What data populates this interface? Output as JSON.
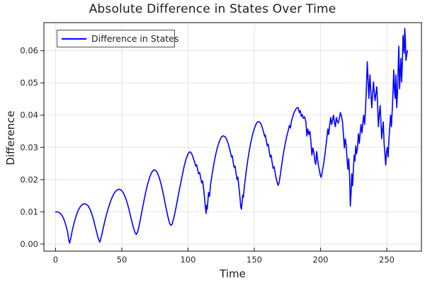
{
  "title": "Absolute Difference in States Over Time",
  "axes": {
    "x_label": "Time",
    "y_label": "Difference"
  },
  "legend": {
    "label": "Difference in States"
  },
  "colors": {
    "line": "#0000ff",
    "grid": "rgba(0,0,0,0.10)",
    "frame": "#363636",
    "tick_text": "#262626"
  },
  "chart_data": {
    "type": "line",
    "title": "Absolute Difference in States Over Time",
    "xlabel": "Time",
    "ylabel": "Difference",
    "xlim": [
      -8.8,
      276.2
    ],
    "ylim": [
      -0.0022,
      0.0687
    ],
    "grid": true,
    "legend_position": "top-left",
    "xticks": [
      0,
      50,
      100,
      150,
      200,
      250
    ],
    "xtick_labels": [
      "0",
      "50",
      "100",
      "150",
      "200",
      "250"
    ],
    "yticks": [
      0.0,
      0.01,
      0.02,
      0.03,
      0.04,
      0.05,
      0.06
    ],
    "ytick_labels": [
      "0.00",
      "0.01",
      "0.02",
      "0.03",
      "0.04",
      "0.05",
      "0.06"
    ],
    "series": [
      {
        "name": "Difference in States",
        "color": "#0000ff",
        "points": [
          [
            0,
            0.01
          ],
          [
            1.5,
            0.01
          ],
          [
            3,
            0.0097
          ],
          [
            4.5,
            0.0091
          ],
          [
            6,
            0.008
          ],
          [
            7.5,
            0.0062
          ],
          [
            9,
            0.004
          ],
          [
            10,
            0.0012
          ],
          [
            10.6,
            0.0003
          ],
          [
            11.5,
            0.0018
          ],
          [
            12.5,
            0.004
          ],
          [
            14,
            0.0066
          ],
          [
            15.5,
            0.0087
          ],
          [
            17,
            0.0104
          ],
          [
            18.5,
            0.0115
          ],
          [
            20,
            0.0122
          ],
          [
            21.5,
            0.0125
          ],
          [
            23,
            0.0124
          ],
          [
            24.5,
            0.0119
          ],
          [
            26,
            0.0108
          ],
          [
            27.5,
            0.0092
          ],
          [
            29,
            0.007
          ],
          [
            30.5,
            0.0045
          ],
          [
            32,
            0.002
          ],
          [
            33.4,
            0.0006
          ],
          [
            34.5,
            0.0022
          ],
          [
            36,
            0.005
          ],
          [
            37.5,
            0.0077
          ],
          [
            39,
            0.01
          ],
          [
            40.5,
            0.012
          ],
          [
            42,
            0.0138
          ],
          [
            43.5,
            0.0152
          ],
          [
            45,
            0.0162
          ],
          [
            46.5,
            0.0168
          ],
          [
            48,
            0.017
          ],
          [
            49.5,
            0.0168
          ],
          [
            51,
            0.016
          ],
          [
            52.5,
            0.0147
          ],
          [
            54,
            0.0129
          ],
          [
            55.5,
            0.0106
          ],
          [
            57,
            0.008
          ],
          [
            58.5,
            0.0055
          ],
          [
            60,
            0.0035
          ],
          [
            61,
            0.003
          ],
          [
            62,
            0.0038
          ],
          [
            63.5,
            0.0065
          ],
          [
            65,
            0.0098
          ],
          [
            66.5,
            0.013
          ],
          [
            68,
            0.016
          ],
          [
            69.5,
            0.0186
          ],
          [
            71,
            0.0207
          ],
          [
            72.5,
            0.0222
          ],
          [
            74,
            0.023
          ],
          [
            75.5,
            0.0229
          ],
          [
            77,
            0.022
          ],
          [
            78.5,
            0.0203
          ],
          [
            80,
            0.018
          ],
          [
            81.5,
            0.0152
          ],
          [
            83,
            0.012
          ],
          [
            84.5,
            0.009
          ],
          [
            86,
            0.0065
          ],
          [
            87,
            0.0058
          ],
          [
            88,
            0.0062
          ],
          [
            89.5,
            0.0085
          ],
          [
            91,
            0.0115
          ],
          [
            92.5,
            0.0148
          ],
          [
            94,
            0.018
          ],
          [
            95.5,
            0.021
          ],
          [
            97,
            0.024
          ],
          [
            98.5,
            0.0264
          ],
          [
            100,
            0.028
          ],
          [
            101,
            0.0286
          ],
          [
            102,
            0.0285
          ],
          [
            103,
            0.0278
          ],
          [
            104,
            0.0266
          ],
          [
            105,
            0.0254
          ],
          [
            105.8,
            0.0242
          ],
          [
            106.5,
            0.0246
          ],
          [
            107.3,
            0.023
          ],
          [
            108,
            0.0218
          ],
          [
            108.8,
            0.0222
          ],
          [
            109.5,
            0.0206
          ],
          [
            110.3,
            0.019
          ],
          [
            111,
            0.0196
          ],
          [
            111.8,
            0.017
          ],
          [
            112.3,
            0.015
          ],
          [
            112.8,
            0.0128
          ],
          [
            113.2,
            0.011
          ],
          [
            113.6,
            0.0095
          ],
          [
            114,
            0.012
          ],
          [
            114.5,
            0.0108
          ],
          [
            115,
            0.0135
          ],
          [
            115.5,
            0.016
          ],
          [
            116.2,
            0.0148
          ],
          [
            117,
            0.0185
          ],
          [
            118,
            0.0212
          ],
          [
            119,
            0.0238
          ],
          [
            120,
            0.026
          ],
          [
            121,
            0.028
          ],
          [
            122,
            0.0297
          ],
          [
            123,
            0.0311
          ],
          [
            124,
            0.0322
          ],
          [
            125,
            0.0331
          ],
          [
            126.5,
            0.0336
          ],
          [
            128,
            0.0333
          ],
          [
            129,
            0.0326
          ],
          [
            130,
            0.0315
          ],
          [
            131,
            0.0301
          ],
          [
            132,
            0.0285
          ],
          [
            132.8,
            0.027
          ],
          [
            133.4,
            0.0274
          ],
          [
            134,
            0.0256
          ],
          [
            134.8,
            0.0238
          ],
          [
            135.5,
            0.0242
          ],
          [
            136.2,
            0.022
          ],
          [
            137,
            0.02
          ],
          [
            137.6,
            0.0208
          ],
          [
            138.2,
            0.0185
          ],
          [
            138.8,
            0.0162
          ],
          [
            139.3,
            0.014
          ],
          [
            139.8,
            0.0115
          ],
          [
            140.3,
            0.0108
          ],
          [
            140.8,
            0.013
          ],
          [
            141.3,
            0.0152
          ],
          [
            141.8,
            0.0145
          ],
          [
            142.3,
            0.017
          ],
          [
            143,
            0.0195
          ],
          [
            144,
            0.0228
          ],
          [
            145,
            0.0258
          ],
          [
            146,
            0.0284
          ],
          [
            147,
            0.0307
          ],
          [
            148,
            0.0327
          ],
          [
            149,
            0.0344
          ],
          [
            150,
            0.0358
          ],
          [
            151,
            0.0369
          ],
          [
            152,
            0.0377
          ],
          [
            153,
            0.038
          ],
          [
            154,
            0.0379
          ],
          [
            155,
            0.0373
          ],
          [
            156,
            0.0362
          ],
          [
            157,
            0.0348
          ],
          [
            157.8,
            0.0334
          ],
          [
            158.4,
            0.0338
          ],
          [
            159,
            0.0322
          ],
          [
            159.8,
            0.0305
          ],
          [
            160.5,
            0.031
          ],
          [
            161.2,
            0.029
          ],
          [
            162,
            0.027
          ],
          [
            162.7,
            0.0276
          ],
          [
            163.4,
            0.0255
          ],
          [
            164.2,
            0.0235
          ],
          [
            165,
            0.024
          ],
          [
            165.8,
            0.022
          ],
          [
            166.5,
            0.0205
          ],
          [
            167.2,
            0.0192
          ],
          [
            168,
            0.0182
          ],
          [
            168.7,
            0.019
          ],
          [
            169.5,
            0.021
          ],
          [
            170.5,
            0.024
          ],
          [
            171.5,
            0.0268
          ],
          [
            172.5,
            0.0293
          ],
          [
            173.5,
            0.0315
          ],
          [
            174.5,
            0.0334
          ],
          [
            175.5,
            0.035
          ],
          [
            176.5,
            0.0368
          ],
          [
            177.2,
            0.036
          ],
          [
            178,
            0.038
          ],
          [
            179,
            0.0395
          ],
          [
            180,
            0.0408
          ],
          [
            181,
            0.0416
          ],
          [
            182,
            0.0422
          ],
          [
            183,
            0.0424
          ],
          [
            184,
            0.0408
          ],
          [
            184.7,
            0.0414
          ],
          [
            185.5,
            0.0396
          ],
          [
            186.2,
            0.0402
          ],
          [
            187,
            0.039
          ],
          [
            188,
            0.0395
          ],
          [
            189,
            0.0378
          ],
          [
            189.7,
            0.0335
          ],
          [
            190.4,
            0.0357
          ],
          [
            191.2,
            0.034
          ],
          [
            192,
            0.035
          ],
          [
            192.7,
            0.032
          ],
          [
            193.5,
            0.0276
          ],
          [
            194.2,
            0.0298
          ],
          [
            195,
            0.0285
          ],
          [
            195.7,
            0.0258
          ],
          [
            196.4,
            0.0247
          ],
          [
            197.1,
            0.0287
          ],
          [
            197.8,
            0.0262
          ],
          [
            198.5,
            0.0242
          ],
          [
            199.2,
            0.0228
          ],
          [
            199.8,
            0.0214
          ],
          [
            200.5,
            0.0207
          ],
          [
            201.2,
            0.0222
          ],
          [
            202,
            0.024
          ],
          [
            202.7,
            0.0258
          ],
          [
            203.4,
            0.028
          ],
          [
            204.1,
            0.0305
          ],
          [
            204.8,
            0.033
          ],
          [
            205.5,
            0.0357
          ],
          [
            206.2,
            0.034
          ],
          [
            207,
            0.0372
          ],
          [
            207.7,
            0.0393
          ],
          [
            208.4,
            0.0371
          ],
          [
            209.1,
            0.0385
          ],
          [
            209.8,
            0.04
          ],
          [
            210.5,
            0.0378
          ],
          [
            211.2,
            0.0364
          ],
          [
            212,
            0.0393
          ],
          [
            212.7,
            0.038
          ],
          [
            213.4,
            0.0375
          ],
          [
            214.2,
            0.039
          ],
          [
            215,
            0.0408
          ],
          [
            215.8,
            0.0398
          ],
          [
            216.6,
            0.0379
          ],
          [
            217.3,
            0.034
          ],
          [
            218,
            0.0298
          ],
          [
            218.7,
            0.0327
          ],
          [
            219.4,
            0.0305
          ],
          [
            220.1,
            0.026
          ],
          [
            220.7,
            0.0232
          ],
          [
            221.3,
            0.0265
          ],
          [
            222,
            0.0205
          ],
          [
            222.5,
            0.0118
          ],
          [
            223.1,
            0.016
          ],
          [
            223.6,
            0.0218
          ],
          [
            224.2,
            0.0181
          ],
          [
            224.8,
            0.023
          ],
          [
            225.4,
            0.0276
          ],
          [
            226,
            0.0258
          ],
          [
            226.6,
            0.0305
          ],
          [
            227.2,
            0.028
          ],
          [
            227.9,
            0.0298
          ],
          [
            228.6,
            0.0342
          ],
          [
            229.3,
            0.0312
          ],
          [
            230,
            0.0348
          ],
          [
            230.6,
            0.0371
          ],
          [
            231.3,
            0.0345
          ],
          [
            232,
            0.0378
          ],
          [
            232.6,
            0.04
          ],
          [
            233.3,
            0.0371
          ],
          [
            234,
            0.042
          ],
          [
            234.6,
            0.048
          ],
          [
            235.3,
            0.0566
          ],
          [
            236,
            0.05
          ],
          [
            236.5,
            0.0452
          ],
          [
            237.3,
            0.0525
          ],
          [
            238,
            0.047
          ],
          [
            238.7,
            0.0423
          ],
          [
            239.4,
            0.047
          ],
          [
            240,
            0.0503
          ],
          [
            240.6,
            0.0468
          ],
          [
            241.2,
            0.0445
          ],
          [
            241.9,
            0.047
          ],
          [
            242.5,
            0.0488
          ],
          [
            243.1,
            0.043
          ],
          [
            243.7,
            0.0364
          ],
          [
            244.3,
            0.04
          ],
          [
            245,
            0.043
          ],
          [
            245.6,
            0.038
          ],
          [
            246.2,
            0.0327
          ],
          [
            246.8,
            0.0355
          ],
          [
            247.4,
            0.0379
          ],
          [
            248,
            0.0312
          ],
          [
            248.6,
            0.028
          ],
          [
            249.2,
            0.0245
          ],
          [
            249.8,
            0.0285
          ],
          [
            250.4,
            0.03
          ],
          [
            251,
            0.027
          ],
          [
            251.6,
            0.032
          ],
          [
            252.3,
            0.0365
          ],
          [
            252.9,
            0.04
          ],
          [
            253.5,
            0.0364
          ],
          [
            254.2,
            0.042
          ],
          [
            254.8,
            0.048
          ],
          [
            255.3,
            0.054
          ],
          [
            255.9,
            0.0475
          ],
          [
            256.4,
            0.0452
          ],
          [
            256.9,
            0.0525
          ],
          [
            257.5,
            0.0423
          ],
          [
            258.1,
            0.047
          ],
          [
            258.6,
            0.054
          ],
          [
            259.1,
            0.0614
          ],
          [
            259.7,
            0.0482
          ],
          [
            260.2,
            0.053
          ],
          [
            260.7,
            0.0576
          ],
          [
            261.2,
            0.0503
          ],
          [
            261.8,
            0.056
          ],
          [
            262.3,
            0.0647
          ],
          [
            262.8,
            0.061
          ],
          [
            263.2,
            0.0592
          ],
          [
            263.6,
            0.0669
          ],
          [
            264.1,
            0.063
          ],
          [
            264.5,
            0.057
          ],
          [
            265,
            0.0585
          ],
          [
            265.6,
            0.06
          ]
        ]
      }
    ]
  }
}
